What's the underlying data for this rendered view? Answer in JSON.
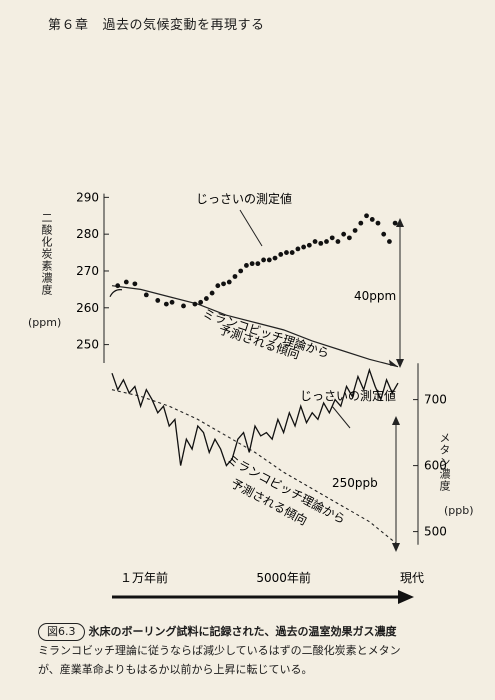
{
  "header": {
    "chapter": "第６章",
    "title": "過去の気候変動を再現する"
  },
  "chart_data": [
    {
      "type": "scatter",
      "ylabel": "二酸化炭素濃度",
      "yunit": "(ppm)",
      "yticks": [
        250,
        260,
        270,
        280,
        290
      ],
      "ylim": [
        245,
        292
      ],
      "xlim": [
        0,
        1
      ],
      "xlabels": [
        "１万年前",
        "5000年前",
        "現代"
      ],
      "series": [
        {
          "name": "じっさいの測定値",
          "points": [
            [
              0.02,
              266
            ],
            [
              0.05,
              267
            ],
            [
              0.08,
              266.5
            ],
            [
              0.12,
              263.5
            ],
            [
              0.16,
              262
            ],
            [
              0.19,
              261
            ],
            [
              0.21,
              261.5
            ],
            [
              0.25,
              260.5
            ],
            [
              0.29,
              261
            ],
            [
              0.31,
              261.5
            ],
            [
              0.33,
              262.5
            ],
            [
              0.35,
              264
            ],
            [
              0.37,
              266
            ],
            [
              0.39,
              266.5
            ],
            [
              0.41,
              267
            ],
            [
              0.43,
              268.5
            ],
            [
              0.45,
              270
            ],
            [
              0.47,
              271.5
            ],
            [
              0.49,
              272
            ],
            [
              0.51,
              272
            ],
            [
              0.53,
              273
            ],
            [
              0.55,
              273
            ],
            [
              0.57,
              273.5
            ],
            [
              0.59,
              274.5
            ],
            [
              0.61,
              275
            ],
            [
              0.63,
              275
            ],
            [
              0.65,
              276
            ],
            [
              0.67,
              276.5
            ],
            [
              0.69,
              277
            ],
            [
              0.71,
              278
            ],
            [
              0.73,
              277.5
            ],
            [
              0.75,
              278
            ],
            [
              0.77,
              279
            ],
            [
              0.79,
              278
            ],
            [
              0.81,
              280
            ],
            [
              0.83,
              279
            ],
            [
              0.85,
              281
            ],
            [
              0.87,
              283
            ],
            [
              0.89,
              285
            ],
            [
              0.91,
              284
            ],
            [
              0.93,
              283
            ],
            [
              0.95,
              280
            ],
            [
              0.97,
              278
            ],
            [
              0.99,
              283
            ]
          ]
        },
        {
          "name": "ミランコビッチ理論から予測される傾向",
          "x": [
            0,
            0.1,
            0.2,
            0.3,
            0.4,
            0.5,
            0.6,
            0.7,
            0.8,
            0.9,
            1
          ],
          "values": [
            266,
            265,
            263,
            261,
            258,
            256,
            254,
            251,
            248.5,
            246,
            244
          ]
        }
      ],
      "annotations": {
        "measured": "じっさいの測定値",
        "theory_line1": "ミランコビッチ理論から",
        "theory_line2": "予測される傾向",
        "gap": "40ppm"
      }
    },
    {
      "type": "line",
      "ylabel": "メタン濃度",
      "yunit": "(ppb)",
      "yticks": [
        500,
        600,
        700
      ],
      "ylim": [
        460,
        760
      ],
      "xlim": [
        0,
        1
      ],
      "series": [
        {
          "name": "じっさいの測定値",
          "x": [
            0,
            0.02,
            0.04,
            0.06,
            0.08,
            0.1,
            0.12,
            0.14,
            0.16,
            0.18,
            0.2,
            0.22,
            0.24,
            0.26,
            0.28,
            0.3,
            0.32,
            0.34,
            0.36,
            0.38,
            0.4,
            0.42,
            0.44,
            0.46,
            0.48,
            0.5,
            0.52,
            0.54,
            0.56,
            0.58,
            0.6,
            0.62,
            0.64,
            0.66,
            0.68,
            0.7,
            0.72,
            0.74,
            0.76,
            0.78,
            0.8,
            0.82,
            0.84,
            0.86,
            0.88,
            0.9,
            0.92,
            0.94,
            0.96,
            0.98,
            1.0
          ],
          "values": [
            740,
            715,
            730,
            710,
            720,
            690,
            715,
            700,
            680,
            690,
            660,
            670,
            600,
            640,
            625,
            660,
            650,
            620,
            640,
            625,
            600,
            610,
            640,
            650,
            620,
            660,
            645,
            650,
            640,
            670,
            650,
            680,
            660,
            690,
            665,
            680,
            670,
            695,
            680,
            700,
            690,
            720,
            705,
            735,
            715,
            745,
            720,
            700,
            730,
            710,
            725
          ]
        },
        {
          "name": "ミランコビッチ理論から予測される傾向",
          "x": [
            0,
            0.1,
            0.2,
            0.3,
            0.4,
            0.5,
            0.6,
            0.7,
            0.8,
            0.9,
            1
          ],
          "values": [
            715,
            705,
            690,
            670,
            645,
            620,
            590,
            565,
            540,
            515,
            480
          ]
        }
      ],
      "annotations": {
        "measured": "じっさいの測定値",
        "theory_line1": "ミランコビッチ理論から",
        "theory_line2": "予測される傾向",
        "gap": "250ppb"
      }
    }
  ],
  "caption": {
    "fig_no": "図6.3",
    "title": "氷床のボーリング試料に記録された、過去の温室効果ガス濃度",
    "body1": "ミランコビッチ理論に従うならば減少しているはずの二酸化炭素とメタン",
    "body2": "が、産業革命よりもはるか以前から上昇に転じている。"
  }
}
